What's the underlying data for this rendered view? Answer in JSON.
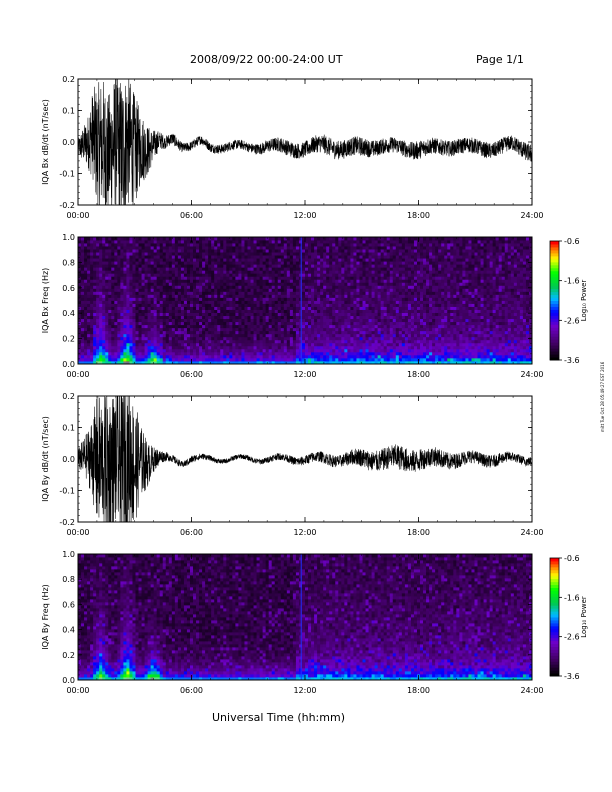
{
  "header": {
    "title": "2008/09/22  00:00-24:00 UT",
    "page": "Page 1/1"
  },
  "footer": {
    "xlabel": "Universal Time (hh:mm)",
    "credit": "mitt Tue Oct 28 05:49:27 EST 2016"
  },
  "chart_data": [
    {
      "id": "bx_timeseries",
      "type": "line",
      "ylabel": "IQA Bx dB/dt (nT/sec)",
      "ylim": [
        -0.2,
        0.2
      ],
      "yticks": [
        -0.2,
        -0.1,
        0.0,
        0.1,
        0.2
      ],
      "ytick_labels": [
        "-0.2",
        "-0.1",
        "0.0",
        "0.1",
        "0.2"
      ],
      "xlim": [
        0,
        24
      ],
      "xticks": [
        0,
        6,
        12,
        18,
        24
      ],
      "xtick_labels": [
        "00:00",
        "06:00",
        "12:00",
        "18:00",
        "24:00"
      ],
      "series": [
        {
          "x": [
            0,
            0.5,
            0.8,
            1.0,
            1.3,
            1.6,
            2.0,
            2.3,
            2.6,
            3.0,
            3.3,
            3.7,
            4.0,
            4.3,
            4.6,
            5.0,
            5.5,
            6.0,
            6.5,
            7.0,
            8.0,
            9.0,
            10.0,
            11.0,
            12.0,
            13.0,
            14.0,
            15.0,
            16.0,
            17.0,
            18.0,
            19.0,
            20.0,
            21.0,
            22.0,
            23.0,
            24.0
          ],
          "center": [
            -0.02,
            -0.01,
            0.02,
            -0.02,
            0.0,
            -0.04,
            0.01,
            -0.05,
            0.0,
            -0.03,
            -0.01,
            -0.02,
            -0.01,
            0.0,
            -0.01,
            0.01,
            -0.01,
            -0.01,
            0.0,
            -0.02,
            -0.01,
            -0.02,
            -0.01,
            -0.02,
            -0.02,
            -0.01,
            -0.02,
            -0.02,
            -0.01,
            -0.02,
            -0.02,
            -0.02,
            -0.01,
            -0.02,
            -0.02,
            -0.01,
            -0.03
          ],
          "amplitude": [
            0.03,
            0.08,
            0.15,
            0.2,
            0.22,
            0.2,
            0.22,
            0.25,
            0.22,
            0.18,
            0.12,
            0.08,
            0.05,
            0.03,
            0.02,
            0.02,
            0.015,
            0.015,
            0.015,
            0.015,
            0.015,
            0.015,
            0.02,
            0.025,
            0.025,
            0.03,
            0.03,
            0.03,
            0.025,
            0.025,
            0.03,
            0.025,
            0.025,
            0.025,
            0.025,
            0.025,
            0.03
          ]
        }
      ]
    },
    {
      "id": "bx_spectrogram",
      "type": "heatmap",
      "ylabel": "IQA Bx Freq (Hz)",
      "ylim": [
        0.0,
        1.0
      ],
      "yticks": [
        0.0,
        0.2,
        0.4,
        0.6,
        0.8,
        1.0
      ],
      "ytick_labels": [
        "0.0",
        "0.2",
        "0.4",
        "0.6",
        "0.8",
        "1.0"
      ],
      "xlim": [
        0,
        24
      ],
      "xticks": [
        0,
        6,
        12,
        18,
        24
      ],
      "xtick_labels": [
        "00:00",
        "06:00",
        "12:00",
        "18:00",
        "24:00"
      ],
      "colorbar": {
        "label": "Log₁₀ Power",
        "range": [
          -3.6,
          -0.6
        ],
        "ticks": [
          -3.6,
          -2.6,
          -1.6,
          -0.6
        ],
        "tick_labels": [
          "-3.6",
          "-2.6",
          "-1.6",
          "-0.6"
        ]
      },
      "bursts_hours": [
        1.2,
        2.6,
        4.0
      ],
      "vertical_line_hour": 11.8
    },
    {
      "id": "by_timeseries",
      "type": "line",
      "ylabel": "IQA By dB/dt (nT/sec)",
      "ylim": [
        -0.2,
        0.2
      ],
      "yticks": [
        -0.2,
        -0.1,
        0.0,
        0.1,
        0.2
      ],
      "ytick_labels": [
        "-0.2",
        "-0.1",
        "0.0",
        "0.1",
        "0.2"
      ],
      "xlim": [
        0,
        24
      ],
      "xticks": [
        0,
        6,
        12,
        18,
        24
      ],
      "xtick_labels": [
        "00:00",
        "06:00",
        "12:00",
        "18:00",
        "24:00"
      ],
      "series": [
        {
          "x": [
            0,
            0.5,
            0.8,
            1.0,
            1.3,
            1.6,
            2.0,
            2.3,
            2.6,
            3.0,
            3.3,
            3.7,
            4.0,
            4.3,
            4.6,
            5.0,
            5.5,
            6.0,
            6.5,
            7.0,
            8.0,
            9.0,
            10.0,
            11.0,
            12.0,
            13.0,
            14.0,
            15.0,
            16.0,
            17.0,
            18.0,
            19.0,
            20.0,
            21.0,
            22.0,
            23.0,
            24.0
          ],
          "center": [
            0.0,
            0.0,
            0.0,
            -0.01,
            0.0,
            -0.02,
            0.0,
            -0.02,
            0.0,
            -0.02,
            0.0,
            -0.01,
            0.0,
            0.0,
            0.0,
            0.0,
            -0.01,
            0.0,
            0.0,
            0.0,
            0.0,
            0.0,
            0.0,
            0.0,
            0.0,
            0.0,
            0.0,
            0.0,
            0.0,
            0.0,
            0.0,
            0.0,
            0.0,
            0.0,
            0.0,
            0.0,
            0.0
          ],
          "amplitude": [
            0.03,
            0.08,
            0.14,
            0.22,
            0.2,
            0.25,
            0.22,
            0.25,
            0.24,
            0.2,
            0.12,
            0.07,
            0.04,
            0.025,
            0.015,
            0.012,
            0.01,
            0.012,
            0.01,
            0.008,
            0.008,
            0.008,
            0.01,
            0.012,
            0.015,
            0.018,
            0.02,
            0.03,
            0.035,
            0.04,
            0.035,
            0.03,
            0.025,
            0.02,
            0.02,
            0.015,
            0.015
          ]
        }
      ]
    },
    {
      "id": "by_spectrogram",
      "type": "heatmap",
      "ylabel": "IQA By Freq (Hz)",
      "ylim": [
        0.0,
        1.0
      ],
      "yticks": [
        0.0,
        0.2,
        0.4,
        0.6,
        0.8,
        1.0
      ],
      "ytick_labels": [
        "0.0",
        "0.2",
        "0.4",
        "0.6",
        "0.8",
        "1.0"
      ],
      "xlim": [
        0,
        24
      ],
      "xticks": [
        0,
        6,
        12,
        18,
        24
      ],
      "xtick_labels": [
        "00:00",
        "06:00",
        "12:00",
        "18:00",
        "24:00"
      ],
      "colorbar": {
        "label": "Log₁₀ Power",
        "range": [
          -3.6,
          -0.6
        ],
        "ticks": [
          -3.6,
          -2.6,
          -1.6,
          -0.6
        ],
        "tick_labels": [
          "-3.6",
          "-2.6",
          "-1.6",
          "-0.6"
        ]
      },
      "bursts_hours": [
        1.2,
        2.6,
        4.0
      ],
      "vertical_line_hour": 11.8
    }
  ]
}
